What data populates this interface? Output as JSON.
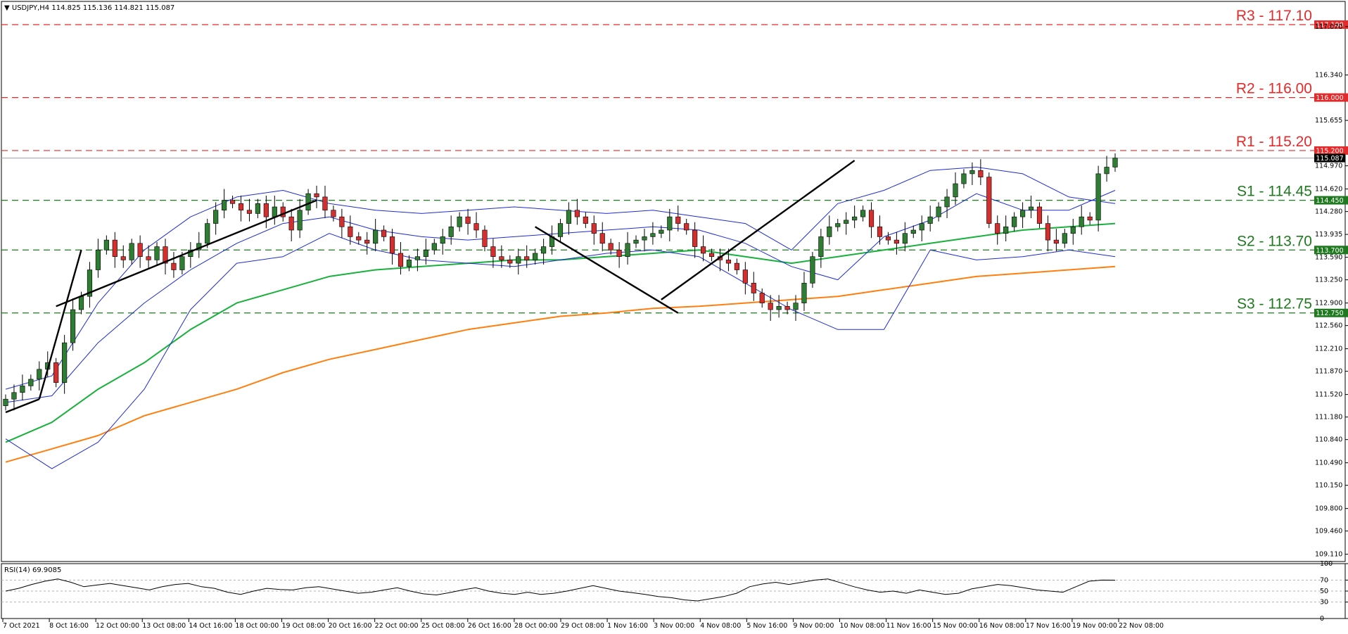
{
  "header": {
    "symbol_line": "USDJPY,H4  114.825 115.136 114.821 115.087"
  },
  "rsi_label": "RSI(14) 69.9085",
  "colors": {
    "bull": "#2e7d32",
    "bear": "#d32f2f",
    "bollinger": "#1e2bd6",
    "ma100": "#18b13c",
    "ma200": "#ff7f0e",
    "resistance": "#e32b2b",
    "support": "#1f7a1f"
  },
  "chart_data": {
    "type": "candlestick",
    "symbol": "USDJPY",
    "timeframe": "H4",
    "ylim": [
      109.0,
      117.45
    ],
    "y_ticks": [
      "117.070",
      "116.340",
      "115.655",
      "114.970",
      "114.620",
      "114.280",
      "113.935",
      "113.590",
      "113.250",
      "112.900",
      "112.560",
      "112.210",
      "111.870",
      "111.520",
      "111.180",
      "110.840",
      "110.490",
      "110.150",
      "109.800",
      "109.460",
      "109.110"
    ],
    "x_ticks": [
      "7 Oct 2021",
      "8 Oct 16:00",
      "12 Oct 00:00",
      "13 Oct 08:00",
      "14 Oct 16:00",
      "18 Oct 00:00",
      "19 Oct 08:00",
      "20 Oct 16:00",
      "22 Oct 00:00",
      "25 Oct 08:00",
      "26 Oct 16:00",
      "28 Oct 00:00",
      "29 Oct 08:00",
      "1 Nov 16:00",
      "3 Nov 00:00",
      "4 Nov 08:00",
      "5 Nov 16:00",
      "9 Nov 00:00",
      "10 Nov 08:00",
      "11 Nov 16:00",
      "15 Nov 00:00",
      "16 Nov 08:00",
      "17 Nov 16:00",
      "19 Nov 00:00",
      "22 Nov 08:00"
    ],
    "levels": [
      {
        "name": "R3",
        "label": "R3 - 117.10",
        "value": 117.1,
        "price_tag": "117.100",
        "kind": "resistance"
      },
      {
        "name": "R2",
        "label": "R2 - 116.00",
        "value": 116.0,
        "price_tag": "116.000",
        "kind": "resistance"
      },
      {
        "name": "R1",
        "label": "R1 - 115.20",
        "value": 115.2,
        "price_tag": "115.200",
        "kind": "resistance"
      },
      {
        "name": "S1",
        "label": "S1 - 114.45",
        "value": 114.45,
        "price_tag": "114.450",
        "kind": "support"
      },
      {
        "name": "S2",
        "label": "S2 - 113.70",
        "value": 113.7,
        "price_tag": "113.700",
        "kind": "support"
      },
      {
        "name": "S3",
        "label": "S3 - 112.75",
        "value": 112.75,
        "price_tag": "112.750",
        "kind": "support"
      }
    ],
    "last_price": {
      "value": 115.087,
      "tag": "115.087"
    },
    "close_path": [
      111.45,
      111.55,
      111.65,
      111.75,
      111.9,
      112.0,
      111.7,
      112.3,
      112.8,
      113.0,
      113.4,
      113.7,
      113.85,
      113.6,
      113.55,
      113.8,
      113.6,
      113.55,
      113.75,
      113.5,
      113.4,
      113.6,
      113.7,
      113.8,
      114.1,
      114.3,
      114.45,
      114.4,
      114.3,
      114.25,
      114.4,
      114.2,
      114.35,
      114.2,
      114.0,
      114.3,
      114.55,
      114.5,
      114.3,
      114.2,
      114.05,
      113.9,
      113.85,
      113.8,
      114.0,
      113.9,
      113.65,
      113.45,
      113.55,
      113.6,
      113.7,
      113.8,
      113.9,
      114.05,
      114.2,
      114.1,
      114.0,
      113.75,
      113.6,
      113.55,
      113.5,
      113.6,
      113.55,
      113.65,
      113.75,
      113.9,
      114.1,
      114.3,
      114.2,
      114.1,
      113.95,
      113.8,
      113.7,
      113.6,
      113.8,
      113.85,
      113.9,
      113.95,
      114.0,
      114.2,
      114.1,
      114.0,
      113.75,
      113.65,
      113.6,
      113.55,
      113.5,
      113.4,
      113.2,
      113.05,
      112.9,
      112.8,
      112.85,
      112.8,
      112.9,
      113.2,
      113.6,
      113.9,
      114.05,
      114.1,
      114.15,
      114.2,
      114.3,
      114.05,
      113.9,
      113.85,
      113.8,
      113.95,
      114.0,
      114.1,
      114.2,
      114.35,
      114.5,
      114.7,
      114.85,
      114.9,
      114.8,
      114.1,
      113.95,
      114.05,
      114.2,
      114.3,
      114.35,
      114.1,
      113.85,
      113.8,
      113.95,
      114.05,
      114.2,
      114.15,
      114.85,
      114.95,
      115.087
    ],
    "indicators": {
      "bollinger_upper": [
        111.6,
        111.8,
        112.9,
        113.7,
        114.2,
        114.5,
        114.6,
        114.4,
        114.3,
        114.25,
        114.3,
        114.35,
        114.3,
        114.25,
        114.3,
        114.2,
        114.1,
        113.7,
        114.4,
        114.6,
        114.9,
        114.95,
        114.85,
        114.5,
        114.4
      ],
      "bollinger_middle": [
        111.4,
        111.5,
        112.3,
        112.9,
        113.4,
        113.8,
        114.1,
        114.2,
        114.0,
        113.9,
        113.85,
        113.9,
        113.95,
        114.0,
        114.05,
        114.0,
        113.8,
        113.45,
        113.25,
        113.9,
        114.15,
        114.55,
        114.3,
        114.3,
        114.6
      ],
      "bollinger_lower": [
        110.85,
        110.4,
        110.8,
        111.6,
        112.8,
        113.5,
        113.6,
        113.95,
        113.7,
        113.55,
        113.5,
        113.45,
        113.55,
        113.65,
        113.7,
        113.6,
        113.2,
        112.8,
        112.5,
        112.5,
        113.7,
        113.55,
        113.6,
        113.7,
        113.6
      ],
      "ma100": [
        110.8,
        111.1,
        111.6,
        112.0,
        112.5,
        112.9,
        113.1,
        113.3,
        113.4,
        113.45,
        113.5,
        113.55,
        113.55,
        113.6,
        113.65,
        113.7,
        113.6,
        113.5,
        113.6,
        113.7,
        113.8,
        113.9,
        114.0,
        114.05,
        114.1
      ],
      "ma200": [
        110.5,
        110.7,
        110.9,
        111.2,
        111.4,
        111.6,
        111.85,
        112.05,
        112.2,
        112.35,
        112.5,
        112.6,
        112.7,
        112.75,
        112.82,
        112.85,
        112.9,
        112.95,
        113.0,
        113.1,
        113.2,
        113.3,
        113.35,
        113.4,
        113.45
      ]
    },
    "trendlines": [
      {
        "from": [
          0,
          111.25
        ],
        "to": [
          4,
          111.45
        ]
      },
      {
        "from": [
          4,
          111.45
        ],
        "to": [
          9,
          113.7
        ]
      },
      {
        "from": [
          6,
          112.85
        ],
        "to": [
          37,
          114.45
        ]
      },
      {
        "from": [
          63,
          114.05
        ],
        "to": [
          80,
          112.75
        ]
      },
      {
        "from": [
          78,
          112.95
        ],
        "to": [
          101,
          115.05
        ]
      }
    ],
    "rsi": {
      "period": 14,
      "current": 69.9085,
      "levels": [
        70,
        50,
        30
      ],
      "y_ticks": [
        "100",
        "70",
        "50",
        "30",
        "0"
      ],
      "values": [
        50,
        55,
        62,
        68,
        72,
        66,
        58,
        61,
        64,
        60,
        56,
        52,
        58,
        62,
        64,
        58,
        55,
        48,
        44,
        50,
        55,
        53,
        52,
        56,
        58,
        54,
        50,
        46,
        48,
        52,
        56,
        50,
        45,
        43,
        47,
        52,
        56,
        50,
        46,
        44,
        48,
        44,
        46,
        50,
        55,
        60,
        55,
        50,
        47,
        44,
        40,
        38,
        34,
        32,
        36,
        40,
        46,
        58,
        63,
        66,
        62,
        66,
        70,
        72,
        65,
        58,
        52,
        48,
        50,
        46,
        52,
        48,
        44,
        46,
        54,
        58,
        62,
        60,
        56,
        52,
        50,
        48,
        58,
        68,
        70,
        69.9
      ]
    }
  }
}
